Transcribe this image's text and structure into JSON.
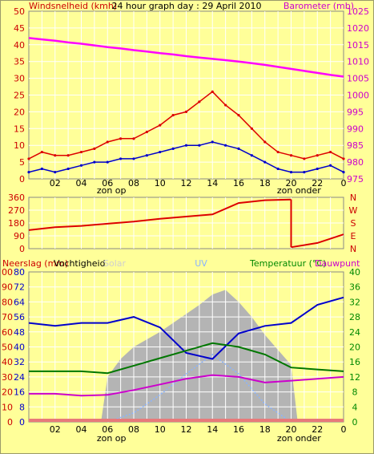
{
  "colors": {
    "background": "#ffff99",
    "plot_background": "#ffff99",
    "grid": "#ffffff",
    "wind_speed": "#0000cc",
    "wind_gust": "#dd0000",
    "barometer": "#ff00ff",
    "wind_direction": "#dd0000",
    "humidity": "#0000cc",
    "solar": "#b4b4b4",
    "uv": "#8ab4ff",
    "temperature": "#cc00cc",
    "dew_point": "#007700",
    "left_axis": "#cc0000",
    "right_axis_top": "#cc00cc",
    "right_axis_bottom": "#008800"
  },
  "chart_data": [
    {
      "type": "line",
      "title": "24 hour graph day : 29 April 2010",
      "left_label": "Windsnelheid (kmh)",
      "right_label": "Barometer (mb)",
      "ylim": [
        0,
        50
      ],
      "y2lim": [
        975,
        1025
      ],
      "yticks": [
        "0",
        "5",
        "10",
        "15",
        "20",
        "25",
        "30",
        "35",
        "40",
        "45",
        "50"
      ],
      "y2ticks": [
        "975",
        "980",
        "985",
        "990",
        "995",
        "1000",
        "1005",
        "1010",
        "1015",
        "1020",
        "1025"
      ],
      "xticks": [
        "02",
        "04",
        "06",
        "08",
        "10",
        "12",
        "14",
        "16",
        "18",
        "20",
        "22",
        "0"
      ],
      "xmarks": [
        "zon op",
        "zon onder"
      ],
      "x_hours": [
        0,
        24
      ],
      "grid": true,
      "series": [
        {
          "key": "barometer",
          "axis": "right",
          "x": [
            0,
            1,
            2,
            3,
            4,
            5,
            6,
            7,
            8,
            9,
            10,
            11,
            12,
            13,
            14,
            15,
            16,
            17,
            18,
            19,
            20,
            21,
            22,
            23,
            24
          ],
          "values": [
            1017,
            1016.6,
            1016.2,
            1015.7,
            1015.3,
            1014.8,
            1014.3,
            1013.9,
            1013.4,
            1013,
            1012.5,
            1012.1,
            1011.6,
            1011.2,
            1010.8,
            1010.4,
            1010,
            1009.5,
            1009,
            1008.4,
            1007.8,
            1007.2,
            1006.6,
            1006,
            1005.5
          ]
        },
        {
          "key": "wind_gust",
          "axis": "left",
          "x": [
            0,
            1,
            2,
            3,
            4,
            5,
            6,
            7,
            8,
            9,
            10,
            11,
            12,
            13,
            14,
            15,
            16,
            17,
            18,
            19,
            20,
            21,
            22,
            23,
            24
          ],
          "values": [
            6,
            8,
            7,
            7,
            8,
            9,
            11,
            12,
            12,
            14,
            16,
            19,
            20,
            23,
            26,
            22,
            19,
            15,
            11,
            8,
            7,
            6,
            7,
            8,
            6
          ]
        },
        {
          "key": "wind_speed",
          "axis": "left",
          "x": [
            0,
            1,
            2,
            3,
            4,
            5,
            6,
            7,
            8,
            9,
            10,
            11,
            12,
            13,
            14,
            15,
            16,
            17,
            18,
            19,
            20,
            21,
            22,
            23,
            24
          ],
          "values": [
            2,
            3,
            2,
            3,
            4,
            5,
            5,
            6,
            6,
            7,
            8,
            9,
            10,
            10,
            11,
            10,
            9,
            7,
            5,
            3,
            2,
            2,
            3,
            4,
            2
          ]
        }
      ]
    },
    {
      "type": "line",
      "title": "",
      "ylim": [
        0,
        360
      ],
      "yticks": [
        "0",
        "90",
        "180",
        "270",
        "360"
      ],
      "y2ticks": [
        "N",
        "E",
        "S",
        "W",
        "N"
      ],
      "xmarks": [],
      "series": [
        {
          "key": "wind_direction",
          "x": [
            0,
            2,
            4,
            6,
            8,
            10,
            12,
            14,
            16,
            18,
            20,
            22,
            24
          ],
          "values": [
            130,
            150,
            160,
            175,
            190,
            210,
            225,
            240,
            320,
            340,
            345,
            40,
            100
          ]
        }
      ]
    },
    {
      "type": "area",
      "title": "",
      "left_label": "Neerslag (mm)",
      "humidity_label": "Vochtigheid",
      "solar_label": "Solar",
      "uv_label": "UV",
      "right_label": "Temperatuur (°C)",
      "dewpoint_label": "Dauwpunt",
      "ylim": [
        0,
        100
      ],
      "y2lim": [
        0,
        40
      ],
      "yticks": [
        "0",
        "10",
        "20",
        "30",
        "40",
        "50",
        "60",
        "70",
        "80",
        "90",
        "100"
      ],
      "humidity_ticks": [
        "0",
        "8",
        "16",
        "24",
        "32",
        "40",
        "48",
        "56",
        "64",
        "72",
        "80"
      ],
      "y2ticks": [
        "0",
        "4",
        "8",
        "12",
        "16",
        "20",
        "24",
        "28",
        "32",
        "36",
        "40"
      ],
      "xticks": [
        "02",
        "04",
        "06",
        "08",
        "10",
        "12",
        "14",
        "16",
        "18",
        "20",
        "22",
        "0"
      ],
      "xmarks": [
        "zon op",
        "zon onder"
      ],
      "series": [
        {
          "key": "solar",
          "axis": "pct",
          "x": [
            5.5,
            6,
            7,
            8,
            9,
            10,
            11,
            12,
            13,
            14,
            15,
            16,
            17,
            18,
            19,
            20,
            20.5
          ],
          "values": [
            0,
            30,
            42,
            50,
            55,
            60,
            66,
            72,
            78,
            85,
            88,
            80,
            70,
            58,
            48,
            38,
            0
          ]
        },
        {
          "key": "uv",
          "axis": "pct",
          "x": [
            6,
            8,
            10,
            12,
            14,
            16,
            18,
            20
          ],
          "values": [
            0,
            6,
            18,
            32,
            45,
            32,
            12,
            0
          ]
        },
        {
          "key": "humidity",
          "axis": "pct",
          "x": [
            0,
            2,
            4,
            6,
            8,
            10,
            12,
            14,
            16,
            18,
            20,
            22,
            24
          ],
          "values": [
            66,
            64,
            66,
            66,
            70,
            63,
            46,
            42,
            59,
            64,
            66,
            78,
            83
          ]
        },
        {
          "key": "temperature",
          "axis": "right",
          "x": [
            0,
            2,
            4,
            6,
            8,
            10,
            12,
            14,
            16,
            18,
            20,
            22,
            24
          ],
          "values": [
            7.5,
            7.5,
            7,
            7.2,
            8.5,
            10,
            11.5,
            12.5,
            12,
            10.5,
            11,
            11.5,
            12
          ]
        },
        {
          "key": "dew_point",
          "axis": "right",
          "x": [
            0,
            2,
            4,
            6,
            8,
            10,
            12,
            14,
            16,
            18,
            20,
            22,
            24
          ],
          "values": [
            13.5,
            13.5,
            13.5,
            13,
            15,
            17,
            19,
            21,
            20,
            18,
            14.5,
            14,
            13.5
          ]
        },
        {
          "key": "rain",
          "axis": "pct",
          "x": [
            0,
            24
          ],
          "values": [
            0,
            0
          ]
        }
      ]
    }
  ]
}
